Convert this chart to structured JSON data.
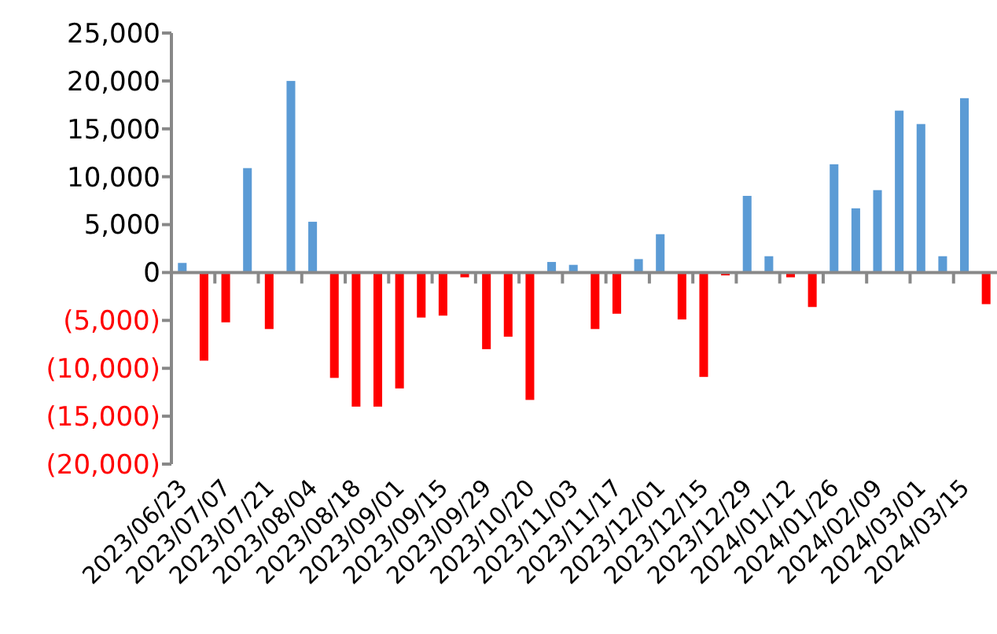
{
  "chart_data": {
    "type": "bar",
    "categories": [
      "2023/06/23",
      null,
      "2023/07/07",
      null,
      "2023/07/21",
      null,
      "2023/08/04",
      null,
      "2023/08/18",
      null,
      "2023/09/01",
      null,
      "2023/09/15",
      null,
      "2023/09/29",
      null,
      "2023/10/20",
      null,
      "2023/11/03",
      null,
      "2023/11/17",
      null,
      "2023/12/01",
      null,
      "2023/12/15",
      null,
      "2023/12/29",
      null,
      "2024/01/12",
      null,
      "2024/01/26",
      null,
      "2024/02/09",
      null,
      "2024/03/01",
      null,
      "2024/03/15",
      null
    ],
    "values": [
      1000,
      -9200,
      -5200,
      10900,
      -5900,
      20000,
      5300,
      -11000,
      -14000,
      -14000,
      -12100,
      -4700,
      -4500,
      -500,
      -8000,
      -6700,
      -13300,
      1100,
      800,
      -5900,
      -4300,
      1400,
      4000,
      -4900,
      -10900,
      -300,
      8000,
      1700,
      -500,
      -3600,
      11300,
      6700,
      8600,
      16900,
      15500,
      1700,
      18200,
      -3300
    ],
    "colors": [
      "#5b9bd5",
      "#ff0000",
      "#ff0000",
      "#5b9bd5",
      "#ff0000",
      "#5b9bd5",
      "#5b9bd5",
      "#ff0000",
      "#ff0000",
      "#ff0000",
      "#ff0000",
      "#ff0000",
      "#ff0000",
      "#ff0000",
      "#ff0000",
      "#ff0000",
      "#ff0000",
      "#5b9bd5",
      "#5b9bd5",
      "#ff0000",
      "#ff0000",
      "#5b9bd5",
      "#5b9bd5",
      "#ff0000",
      "#ff0000",
      "#ff0000",
      "#5b9bd5",
      "#5b9bd5",
      "#ff0000",
      "#ff0000",
      "#5b9bd5",
      "#5b9bd5",
      "#5b9bd5",
      "#5b9bd5",
      "#5b9bd5",
      "#5b9bd5",
      "#5b9bd5",
      "#ff0000"
    ],
    "ylim": [
      -20000,
      25000
    ],
    "yticks": [
      {
        "value": -20000,
        "label": "(20,000)"
      },
      {
        "value": -15000,
        "label": "(15,000)"
      },
      {
        "value": -10000,
        "label": "(10,000)"
      },
      {
        "value": -5000,
        "label": "(5,000)"
      },
      {
        "value": 0,
        "label": "0"
      },
      {
        "value": 5000,
        "label": "5,000"
      },
      {
        "value": 10000,
        "label": "10,000"
      },
      {
        "value": 15000,
        "label": "15,000"
      },
      {
        "value": 20000,
        "label": "20,000"
      },
      {
        "value": 25000,
        "label": "25,000"
      }
    ],
    "ylabel": null
  }
}
